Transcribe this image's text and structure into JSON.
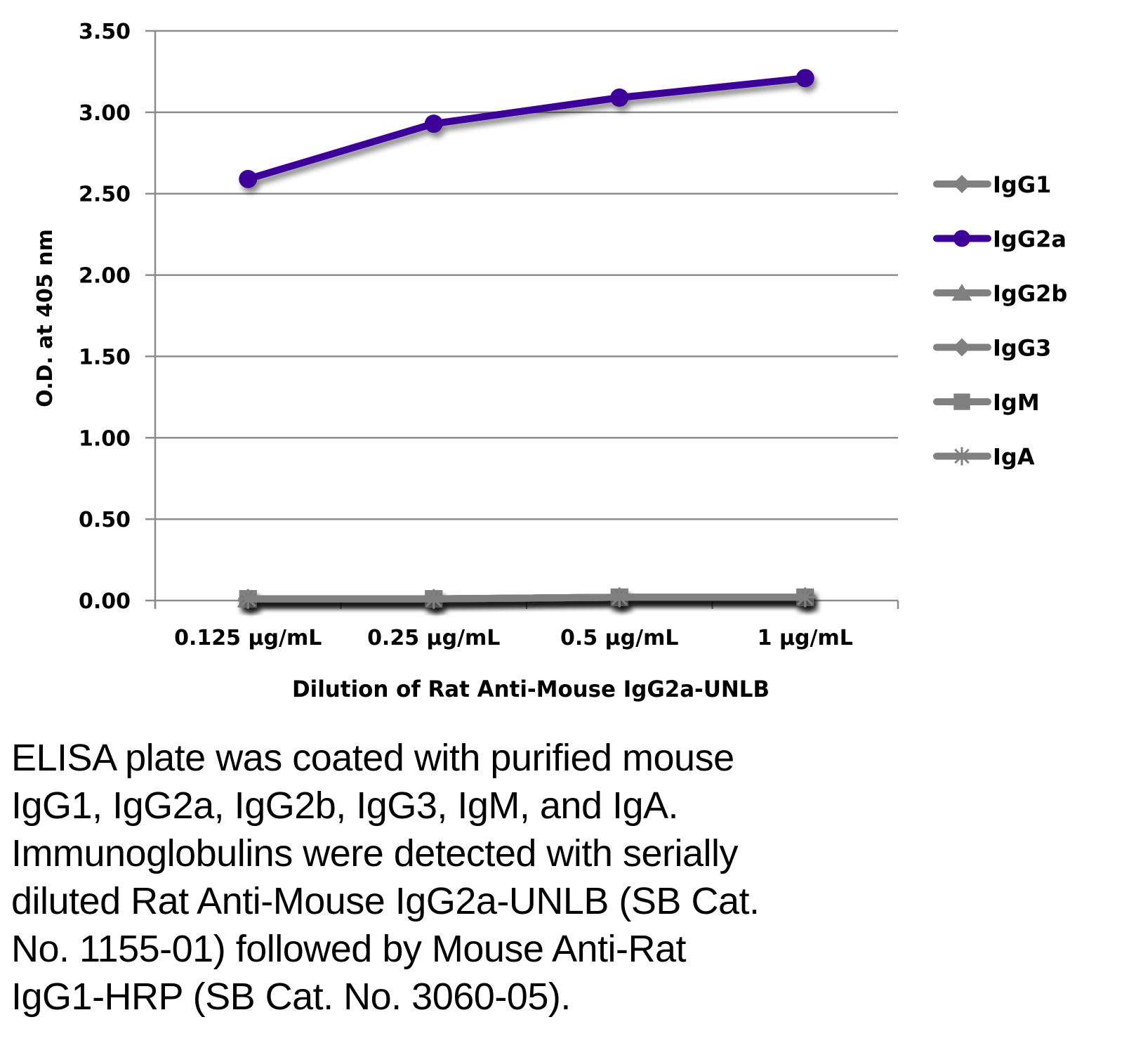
{
  "chart_data": {
    "type": "line",
    "title": "",
    "xlabel": "Dilution of Rat Anti-Mouse IgG2a-UNLB",
    "ylabel": "O.D. at 405 nm",
    "categories": [
      "0.125 µg/mL",
      "0.25 µg/mL",
      "0.5 µg/mL",
      "1 µg/mL"
    ],
    "ylim": [
      0,
      3.5
    ],
    "yticks": [
      "0.00",
      "0.50",
      "1.00",
      "1.50",
      "2.00",
      "2.50",
      "3.00",
      "3.50"
    ],
    "grid": true,
    "legend_position": "right",
    "series": [
      {
        "name": "IgG1",
        "marker": "diamond",
        "color": "#808080",
        "values": [
          0.01,
          0.01,
          0.02,
          0.02
        ]
      },
      {
        "name": "IgG2a",
        "marker": "circle",
        "color": "#3d0099",
        "values": [
          2.59,
          2.93,
          3.09,
          3.21
        ]
      },
      {
        "name": "IgG2b",
        "marker": "triangle",
        "color": "#808080",
        "values": [
          0.01,
          0.01,
          0.02,
          0.02
        ]
      },
      {
        "name": "IgG3",
        "marker": "diamond",
        "color": "#808080",
        "values": [
          0.01,
          0.01,
          0.02,
          0.02
        ]
      },
      {
        "name": "IgM",
        "marker": "square",
        "color": "#808080",
        "values": [
          0.01,
          0.01,
          0.02,
          0.02
        ]
      },
      {
        "name": "IgA",
        "marker": "asterisk",
        "color": "#808080",
        "values": [
          0.01,
          0.01,
          0.02,
          0.02
        ]
      }
    ]
  },
  "caption": {
    "lines": [
      "ELISA plate was coated with purified mouse",
      "IgG1, IgG2a, IgG2b, IgG3, IgM, and IgA.",
      "Immunoglobulins were detected with serially",
      "diluted Rat Anti-Mouse IgG2a-UNLB (SB Cat.",
      "No. 1155-01) followed by Mouse Anti-Rat",
      "IgG1-HRP (SB Cat. No. 3060-05)."
    ]
  }
}
